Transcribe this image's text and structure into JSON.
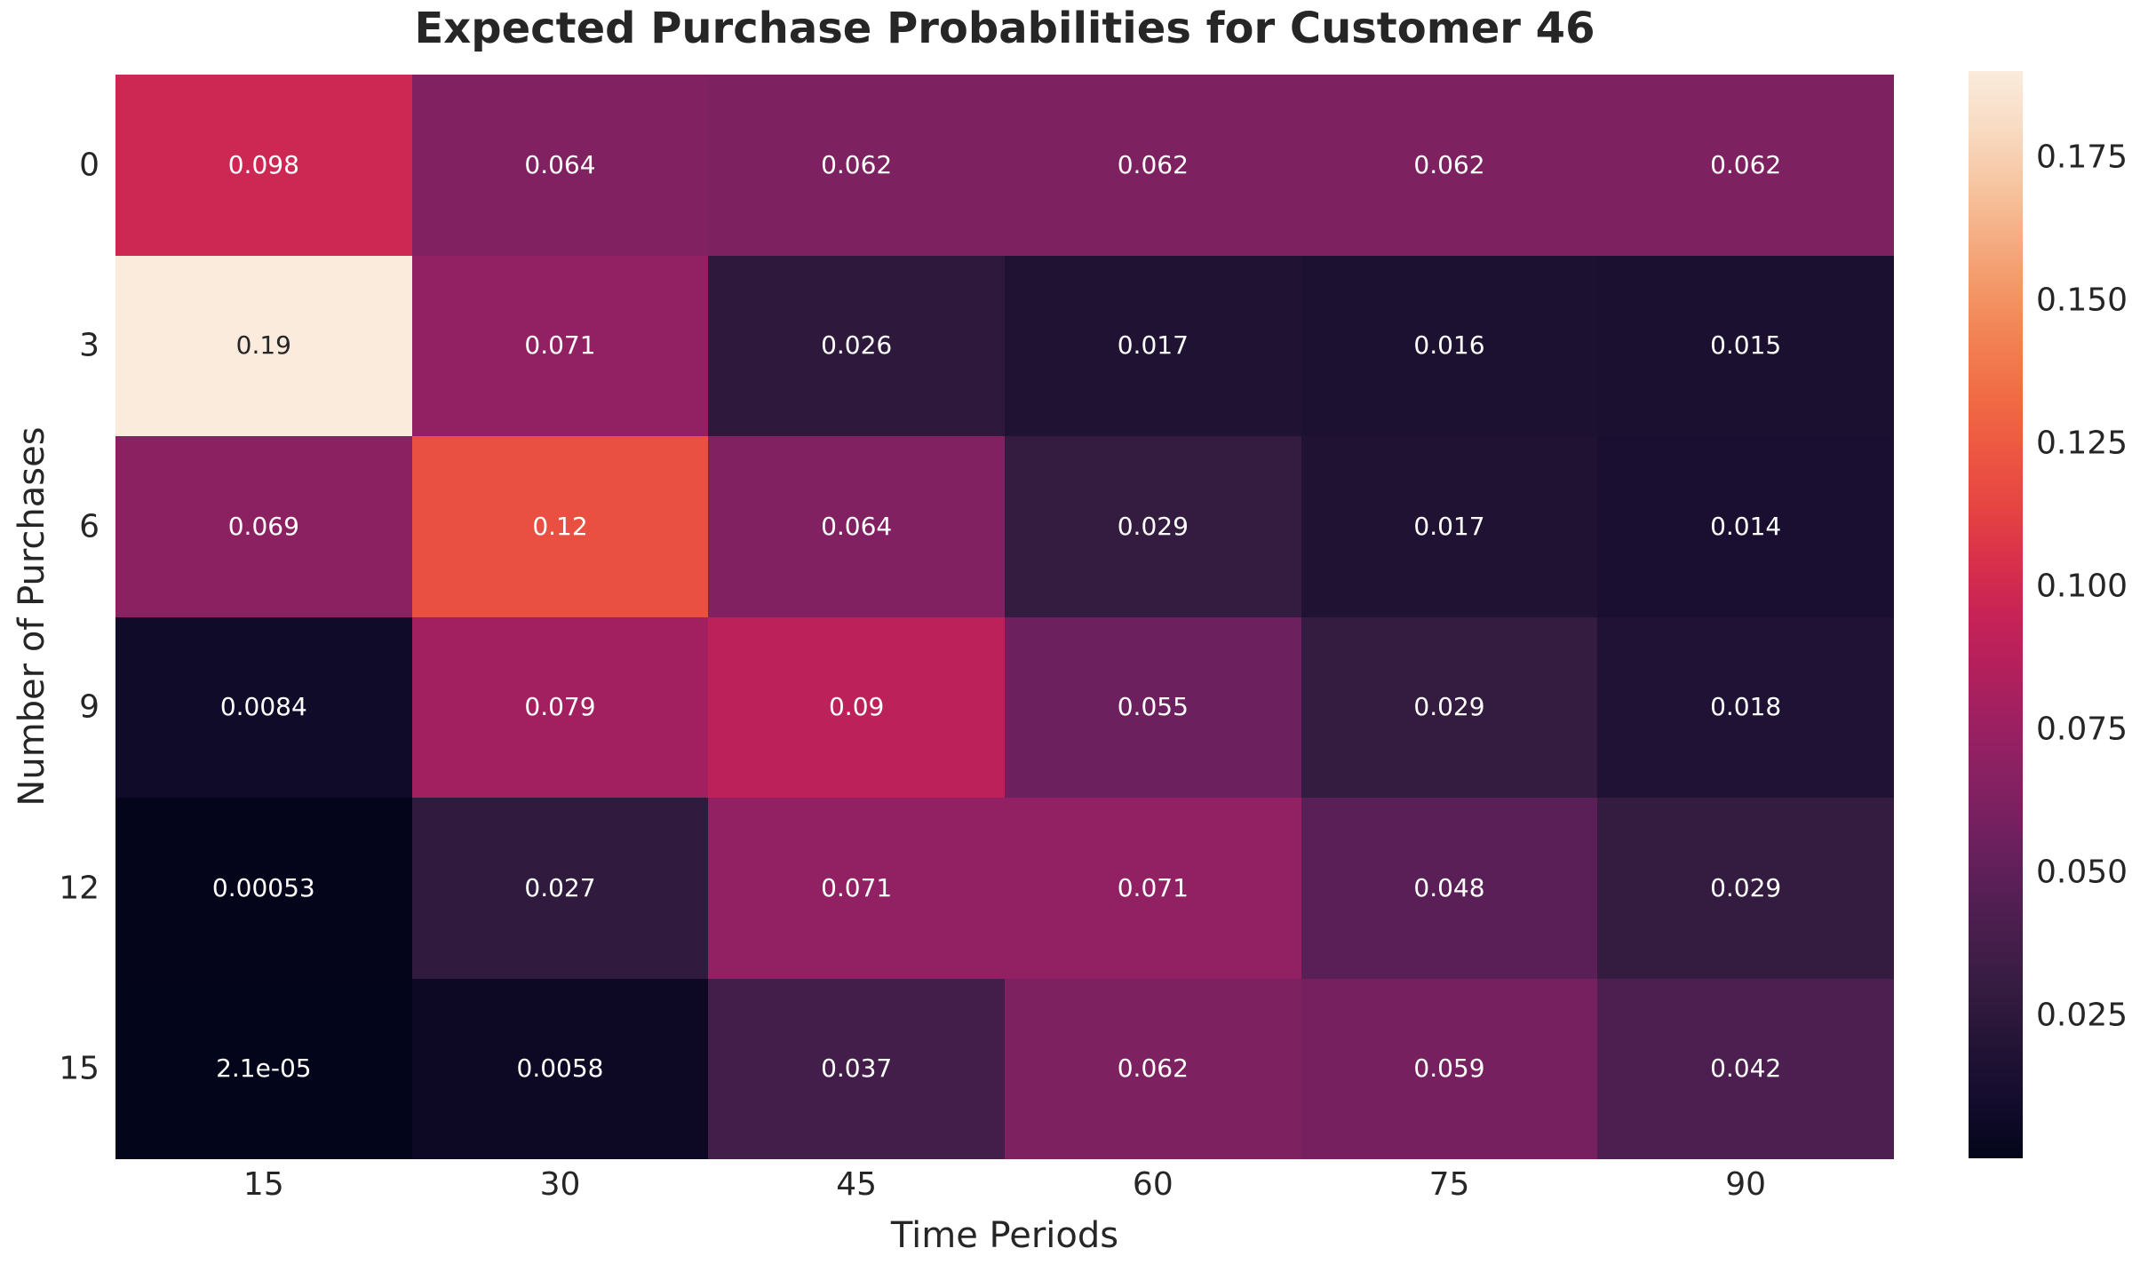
{
  "chart_data": {
    "type": "heatmap",
    "title": "Expected Purchase Probabilities for Customer 46",
    "xlabel": "Time Periods",
    "ylabel": "Number of Purchases",
    "x_categories": [
      "15",
      "30",
      "45",
      "60",
      "75",
      "90"
    ],
    "y_categories": [
      "0",
      "3",
      "6",
      "9",
      "12",
      "15"
    ],
    "values": [
      [
        0.098,
        0.064,
        0.062,
        0.062,
        0.062,
        0.062
      ],
      [
        0.19,
        0.071,
        0.026,
        0.017,
        0.016,
        0.015
      ],
      [
        0.069,
        0.12,
        0.064,
        0.029,
        0.017,
        0.014
      ],
      [
        0.0084,
        0.079,
        0.09,
        0.055,
        0.029,
        0.018
      ],
      [
        0.00053,
        0.027,
        0.071,
        0.071,
        0.048,
        0.029
      ],
      [
        2.1e-05,
        0.0058,
        0.037,
        0.062,
        0.059,
        0.042
      ]
    ],
    "value_labels": [
      [
        "0.098",
        "0.064",
        "0.062",
        "0.062",
        "0.062",
        "0.062"
      ],
      [
        "0.19",
        "0.071",
        "0.026",
        "0.017",
        "0.016",
        "0.015"
      ],
      [
        "0.069",
        "0.12",
        "0.064",
        "0.029",
        "0.017",
        "0.014"
      ],
      [
        "0.0084",
        "0.079",
        "0.09",
        "0.055",
        "0.029",
        "0.018"
      ],
      [
        "0.00053",
        "0.027",
        "0.071",
        "0.071",
        "0.048",
        "0.029"
      ],
      [
        "2.1e-05",
        "0.0058",
        "0.037",
        "0.062",
        "0.059",
        "0.042"
      ]
    ],
    "vmin": 2.1e-05,
    "vmax": 0.19,
    "grid": false,
    "legend_position": "right-colorbar",
    "colorbar_ticks": [
      {
        "value": 0.025,
        "label": "0.025"
      },
      {
        "value": 0.05,
        "label": "0.050"
      },
      {
        "value": 0.075,
        "label": "0.075"
      },
      {
        "value": 0.1,
        "label": "0.100"
      },
      {
        "value": 0.125,
        "label": "0.125"
      },
      {
        "value": 0.15,
        "label": "0.150"
      },
      {
        "value": 0.175,
        "label": "0.175"
      }
    ],
    "colormap": {
      "name": "rocket",
      "stops": [
        [
          0.0,
          "#03051A"
        ],
        [
          0.05,
          "#130C2C"
        ],
        [
          0.1,
          "#221335"
        ],
        [
          0.15,
          "#331B3F"
        ],
        [
          0.2,
          "#451E4B"
        ],
        [
          0.25,
          "#591F56"
        ],
        [
          0.3,
          "#71205F"
        ],
        [
          0.35,
          "#872162"
        ],
        [
          0.4,
          "#9C2062"
        ],
        [
          0.45,
          "#B3205C"
        ],
        [
          0.5,
          "#C72356"
        ],
        [
          0.55,
          "#D9304B"
        ],
        [
          0.6,
          "#E64542"
        ],
        [
          0.65,
          "#ED5742"
        ],
        [
          0.7,
          "#F06B44"
        ],
        [
          0.75,
          "#F28052"
        ],
        [
          0.8,
          "#F39767"
        ],
        [
          0.85,
          "#F5AF85"
        ],
        [
          0.9,
          "#F6C7A4"
        ],
        [
          0.95,
          "#F8DCC4"
        ],
        [
          1.0,
          "#FAEBDC"
        ]
      ]
    },
    "annotation_text_colors": {
      "light": "#ffffff",
      "dark": "#262626"
    }
  }
}
